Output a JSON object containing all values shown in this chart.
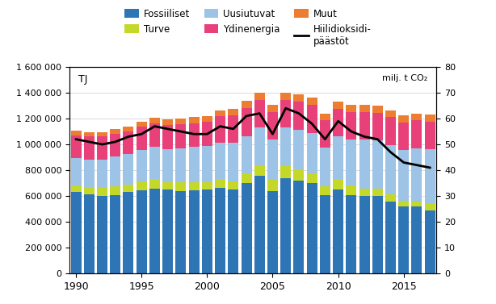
{
  "years": [
    1990,
    1991,
    1992,
    1993,
    1994,
    1995,
    1996,
    1997,
    1998,
    1999,
    2000,
    2001,
    2002,
    2003,
    2004,
    2005,
    2006,
    2007,
    2008,
    2009,
    2010,
    2011,
    2012,
    2013,
    2014,
    2015,
    2016,
    2017
  ],
  "fossiiliset": [
    630000,
    615000,
    600000,
    610000,
    630000,
    645000,
    660000,
    650000,
    640000,
    645000,
    650000,
    665000,
    650000,
    700000,
    760000,
    640000,
    740000,
    720000,
    700000,
    610000,
    650000,
    610000,
    600000,
    600000,
    560000,
    520000,
    520000,
    490000
  ],
  "turve": [
    55000,
    55000,
    65000,
    65000,
    60000,
    70000,
    70000,
    60000,
    65000,
    65000,
    55000,
    65000,
    65000,
    75000,
    80000,
    85000,
    90000,
    85000,
    75000,
    65000,
    80000,
    75000,
    60000,
    60000,
    55000,
    45000,
    40000,
    50000
  ],
  "uusiutuvat": [
    210000,
    215000,
    220000,
    230000,
    235000,
    240000,
    250000,
    255000,
    265000,
    270000,
    285000,
    280000,
    295000,
    290000,
    290000,
    310000,
    300000,
    310000,
    315000,
    300000,
    330000,
    350000,
    375000,
    370000,
    380000,
    390000,
    410000,
    420000
  ],
  "ydinenergia": [
    175000,
    175000,
    175000,
    175000,
    175000,
    180000,
    185000,
    185000,
    185000,
    185000,
    185000,
    210000,
    215000,
    215000,
    215000,
    215000,
    215000,
    215000,
    215000,
    215000,
    215000,
    215000,
    215000,
    215000,
    215000,
    215000,
    215000,
    215000
  ],
  "muut": [
    35000,
    35000,
    35000,
    40000,
    40000,
    40000,
    40000,
    45000,
    45000,
    45000,
    45000,
    45000,
    50000,
    55000,
    55000,
    55000,
    55000,
    55000,
    55000,
    50000,
    55000,
    55000,
    55000,
    55000,
    55000,
    55000,
    55000,
    55000
  ],
  "co2": [
    52,
    51,
    50,
    51,
    53,
    54,
    57,
    56,
    55,
    54,
    54,
    57,
    56,
    61,
    62,
    54,
    64,
    62,
    58,
    52,
    59,
    55,
    53,
    52,
    47,
    43,
    42,
    41
  ],
  "colors": {
    "fossiiliset": "#2E75B6",
    "turve": "#C4D82A",
    "uusiutuvat": "#9DC3E6",
    "ydinenergia": "#E8417A",
    "muut": "#ED7D31",
    "co2": "#000000"
  },
  "ylim_left": [
    0,
    1600000
  ],
  "ylim_right": [
    0,
    80
  ],
  "yticks_left": [
    0,
    200000,
    400000,
    600000,
    800000,
    1000000,
    1200000,
    1400000,
    1600000
  ],
  "yticks_right": [
    0,
    10,
    20,
    30,
    40,
    50,
    60,
    70,
    80
  ],
  "xticks": [
    1990,
    1995,
    2000,
    2005,
    2010,
    2015
  ],
  "ylabel_left": "TJ",
  "ylabel_right": "milj. t CO₂",
  "legend_labels": [
    "Fossiiliset",
    "Turve",
    "Uusiutuvat",
    "Ydinenergia",
    "Muut",
    "Hiilidioksidi-\npäästöt"
  ],
  "background_color": "#ffffff",
  "grid_color": "#cccccc"
}
